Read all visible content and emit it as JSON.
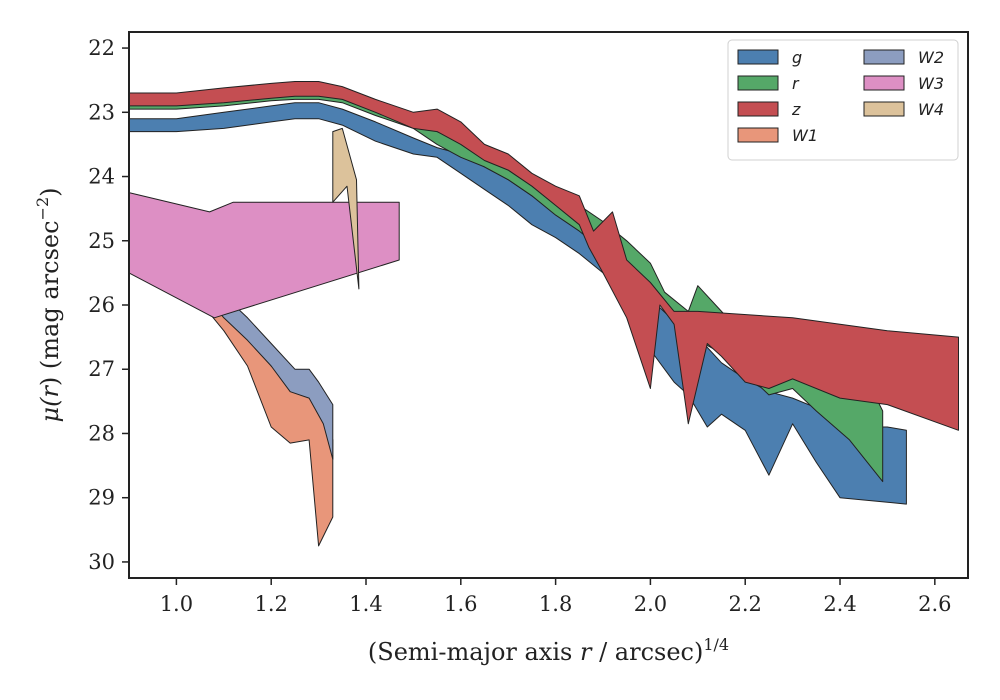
{
  "chart_data": {
    "type": "area",
    "xlabel_main": "(Semi-major axis ",
    "xlabel_var": "r",
    "xlabel_tail": " / arcsec)",
    "xlabel_sup": "1/4",
    "ylabel_pre": "μ(",
    "ylabel_var": "r",
    "ylabel_mid": ") (mag arcsec",
    "ylabel_sup": "−2",
    "ylabel_post": ")",
    "xlim": [
      0.9,
      2.67
    ],
    "ylim": [
      30.25,
      21.75
    ],
    "y_inverted": true,
    "xticks": [
      1.0,
      1.2,
      1.4,
      1.6,
      1.8,
      2.0,
      2.2,
      2.4,
      2.6
    ],
    "xtick_labels": [
      "1.0",
      "1.2",
      "1.4",
      "1.6",
      "1.8",
      "2.0",
      "2.2",
      "2.4",
      "2.6"
    ],
    "yticks": [
      22,
      23,
      24,
      25,
      26,
      27,
      28,
      29,
      30
    ],
    "ytick_labels": [
      "22",
      "23",
      "24",
      "25",
      "26",
      "27",
      "28",
      "29",
      "30"
    ],
    "grid": false,
    "legend_placement": "top-right",
    "legend_columns": 2,
    "series": [
      {
        "name": "g",
        "color": "#4c7fb0",
        "upper": [
          [
            0.9,
            23.1
          ],
          [
            1.0,
            23.1
          ],
          [
            1.1,
            23.0
          ],
          [
            1.2,
            22.9
          ],
          [
            1.25,
            22.85
          ],
          [
            1.3,
            22.85
          ],
          [
            1.35,
            22.95
          ],
          [
            1.42,
            23.15
          ],
          [
            1.5,
            23.4
          ],
          [
            1.55,
            23.55
          ],
          [
            1.6,
            23.65
          ],
          [
            1.65,
            23.85
          ],
          [
            1.7,
            24.05
          ],
          [
            1.75,
            24.3
          ],
          [
            1.8,
            24.55
          ],
          [
            1.85,
            24.8
          ],
          [
            1.9,
            25.3
          ],
          [
            1.95,
            25.7
          ],
          [
            2.0,
            25.9
          ],
          [
            2.05,
            26.25
          ],
          [
            2.1,
            26.5
          ],
          [
            2.15,
            26.9
          ],
          [
            2.2,
            27.15
          ],
          [
            2.25,
            27.35
          ],
          [
            2.3,
            27.45
          ],
          [
            2.35,
            27.6
          ],
          [
            2.4,
            27.8
          ],
          [
            2.45,
            27.9
          ],
          [
            2.5,
            27.9
          ],
          [
            2.54,
            27.95
          ]
        ],
        "lower": [
          [
            2.54,
            29.1
          ],
          [
            2.4,
            29.0
          ],
          [
            2.35,
            28.45
          ],
          [
            2.3,
            27.85
          ],
          [
            2.25,
            28.65
          ],
          [
            2.2,
            27.95
          ],
          [
            2.15,
            27.7
          ],
          [
            2.12,
            27.9
          ],
          [
            2.08,
            27.4
          ],
          [
            2.05,
            27.2
          ],
          [
            2.0,
            26.7
          ],
          [
            1.95,
            26.0
          ],
          [
            1.9,
            25.5
          ],
          [
            1.85,
            25.2
          ],
          [
            1.8,
            24.95
          ],
          [
            1.75,
            24.75
          ],
          [
            1.7,
            24.45
          ],
          [
            1.65,
            24.2
          ],
          [
            1.6,
            23.95
          ],
          [
            1.55,
            23.7
          ],
          [
            1.5,
            23.65
          ],
          [
            1.42,
            23.45
          ],
          [
            1.35,
            23.2
          ],
          [
            1.3,
            23.1
          ],
          [
            1.25,
            23.1
          ],
          [
            1.2,
            23.15
          ],
          [
            1.1,
            23.25
          ],
          [
            1.0,
            23.3
          ],
          [
            0.9,
            23.3
          ]
        ]
      },
      {
        "name": "r",
        "color": "#55a868",
        "upper": [
          [
            0.9,
            22.75
          ],
          [
            1.0,
            22.75
          ],
          [
            1.1,
            22.7
          ],
          [
            1.2,
            22.62
          ],
          [
            1.25,
            22.6
          ],
          [
            1.3,
            22.6
          ],
          [
            1.35,
            22.7
          ],
          [
            1.42,
            22.9
          ],
          [
            1.5,
            23.1
          ],
          [
            1.55,
            23.3
          ],
          [
            1.6,
            23.45
          ],
          [
            1.65,
            23.6
          ],
          [
            1.7,
            23.8
          ],
          [
            1.75,
            24.05
          ],
          [
            1.8,
            24.25
          ],
          [
            1.85,
            24.45
          ],
          [
            1.9,
            24.7
          ],
          [
            1.95,
            25.0
          ],
          [
            2.0,
            25.35
          ],
          [
            2.03,
            25.8
          ],
          [
            2.08,
            26.1
          ],
          [
            2.1,
            25.7
          ],
          [
            2.15,
            26.1
          ],
          [
            2.2,
            26.5
          ],
          [
            2.25,
            26.9
          ],
          [
            2.3,
            27.1
          ],
          [
            2.35,
            27.2
          ],
          [
            2.4,
            27.35
          ],
          [
            2.48,
            27.5
          ],
          [
            2.49,
            27.65
          ]
        ],
        "lower": [
          [
            2.49,
            28.75
          ],
          [
            2.42,
            28.1
          ],
          [
            2.35,
            27.65
          ],
          [
            2.3,
            27.3
          ],
          [
            2.25,
            27.4
          ],
          [
            2.2,
            27.05
          ],
          [
            2.15,
            26.75
          ],
          [
            2.1,
            26.55
          ],
          [
            2.05,
            26.2
          ],
          [
            2.0,
            25.8
          ],
          [
            1.95,
            25.75
          ],
          [
            1.9,
            25.15
          ],
          [
            1.85,
            24.85
          ],
          [
            1.8,
            24.6
          ],
          [
            1.75,
            24.3
          ],
          [
            1.7,
            24.05
          ],
          [
            1.65,
            23.85
          ],
          [
            1.6,
            23.7
          ],
          [
            1.55,
            23.5
          ],
          [
            1.5,
            23.25
          ],
          [
            1.42,
            23.05
          ],
          [
            1.35,
            22.85
          ],
          [
            1.3,
            22.8
          ],
          [
            1.25,
            22.8
          ],
          [
            1.2,
            22.82
          ],
          [
            1.1,
            22.9
          ],
          [
            1.0,
            22.95
          ],
          [
            0.9,
            22.95
          ]
        ]
      },
      {
        "name": "z",
        "color": "#c44e52",
        "upper": [
          [
            0.9,
            22.7
          ],
          [
            1.0,
            22.7
          ],
          [
            1.1,
            22.62
          ],
          [
            1.2,
            22.55
          ],
          [
            1.25,
            22.52
          ],
          [
            1.3,
            22.52
          ],
          [
            1.35,
            22.6
          ],
          [
            1.42,
            22.8
          ],
          [
            1.5,
            23.0
          ],
          [
            1.55,
            22.95
          ],
          [
            1.6,
            23.15
          ],
          [
            1.65,
            23.5
          ],
          [
            1.7,
            23.65
          ],
          [
            1.75,
            23.95
          ],
          [
            1.8,
            24.15
          ],
          [
            1.85,
            24.3
          ],
          [
            1.88,
            24.85
          ],
          [
            1.92,
            24.55
          ],
          [
            1.95,
            25.3
          ],
          [
            2.0,
            25.65
          ],
          [
            2.05,
            26.1
          ],
          [
            2.1,
            26.1
          ],
          [
            2.3,
            26.2
          ],
          [
            2.4,
            26.3
          ],
          [
            2.5,
            26.4
          ],
          [
            2.65,
            26.5
          ]
        ],
        "lower": [
          [
            2.65,
            27.95
          ],
          [
            2.5,
            27.55
          ],
          [
            2.4,
            27.45
          ],
          [
            2.3,
            27.15
          ],
          [
            2.25,
            27.3
          ],
          [
            2.2,
            27.2
          ],
          [
            2.15,
            26.8
          ],
          [
            2.12,
            26.6
          ],
          [
            2.08,
            27.85
          ],
          [
            2.05,
            26.3
          ],
          [
            2.02,
            26.0
          ],
          [
            2.0,
            27.3
          ],
          [
            1.95,
            26.2
          ],
          [
            1.9,
            25.5
          ],
          [
            1.87,
            25.1
          ],
          [
            1.85,
            24.75
          ],
          [
            1.8,
            24.45
          ],
          [
            1.75,
            24.15
          ],
          [
            1.7,
            23.9
          ],
          [
            1.65,
            23.75
          ],
          [
            1.6,
            23.5
          ],
          [
            1.55,
            23.3
          ],
          [
            1.5,
            23.25
          ],
          [
            1.42,
            23.0
          ],
          [
            1.35,
            22.8
          ],
          [
            1.3,
            22.75
          ],
          [
            1.25,
            22.75
          ],
          [
            1.2,
            22.78
          ],
          [
            1.1,
            22.85
          ],
          [
            1.0,
            22.9
          ],
          [
            0.9,
            22.9
          ]
        ]
      },
      {
        "name": "W1",
        "color": "#e8967a",
        "upper": [
          [
            0.9,
            24.7
          ],
          [
            0.95,
            24.95
          ],
          [
            1.0,
            25.1
          ],
          [
            1.05,
            25.5
          ],
          [
            1.1,
            25.95
          ],
          [
            1.15,
            26.3
          ],
          [
            1.2,
            26.95
          ],
          [
            1.25,
            27.3
          ],
          [
            1.3,
            27.35
          ],
          [
            1.33,
            28.1
          ]
        ],
        "lower": [
          [
            1.33,
            29.3
          ],
          [
            1.3,
            29.75
          ],
          [
            1.28,
            28.1
          ],
          [
            1.24,
            28.15
          ],
          [
            1.2,
            27.9
          ],
          [
            1.15,
            26.95
          ],
          [
            1.1,
            26.4
          ],
          [
            1.05,
            25.95
          ],
          [
            1.0,
            25.6
          ],
          [
            0.95,
            25.2
          ],
          [
            0.9,
            25.0
          ]
        ]
      },
      {
        "name": "W2",
        "color": "#8c9dc0",
        "upper": [
          [
            0.9,
            24.4
          ],
          [
            0.95,
            24.6
          ],
          [
            1.0,
            24.9
          ],
          [
            1.05,
            25.4
          ],
          [
            1.1,
            25.85
          ],
          [
            1.15,
            26.2
          ],
          [
            1.2,
            26.6
          ],
          [
            1.25,
            27.0
          ],
          [
            1.28,
            27.0
          ],
          [
            1.3,
            27.2
          ],
          [
            1.33,
            27.55
          ]
        ],
        "lower": [
          [
            1.33,
            28.4
          ],
          [
            1.31,
            27.85
          ],
          [
            1.28,
            27.45
          ],
          [
            1.24,
            27.35
          ],
          [
            1.2,
            26.95
          ],
          [
            1.15,
            26.55
          ],
          [
            1.1,
            26.2
          ],
          [
            1.05,
            25.75
          ],
          [
            1.0,
            25.45
          ],
          [
            0.95,
            25.1
          ],
          [
            0.9,
            24.85
          ]
        ]
      },
      {
        "name": "W3",
        "color": "#dd8fc4",
        "upper": [
          [
            0.9,
            24.25
          ],
          [
            1.07,
            24.55
          ],
          [
            1.12,
            24.4
          ],
          [
            1.47,
            24.4
          ]
        ],
        "lower": [
          [
            1.47,
            25.3
          ],
          [
            1.08,
            26.2
          ],
          [
            0.9,
            25.5
          ]
        ]
      },
      {
        "name": "W4",
        "color": "#dcc29b",
        "upper": [
          [
            1.33,
            23.3
          ],
          [
            1.35,
            23.25
          ],
          [
            1.38,
            24.05
          ],
          [
            1.385,
            25.75
          ]
        ],
        "lower": [
          [
            1.36,
            24.15
          ],
          [
            1.33,
            24.4
          ]
        ]
      }
    ]
  }
}
